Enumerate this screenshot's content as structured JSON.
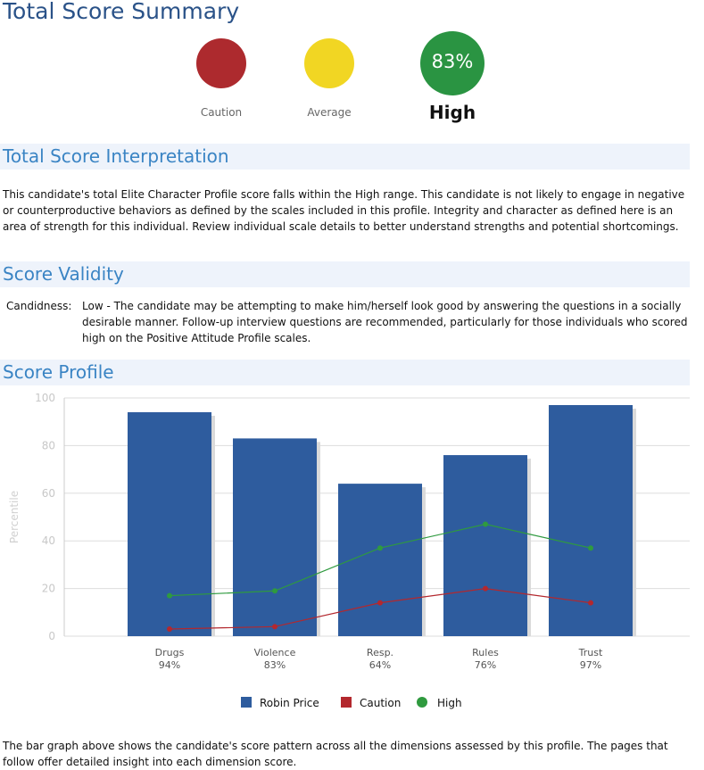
{
  "page_title": "Total Score Summary",
  "summary": {
    "caution_label": "Caution",
    "average_label": "Average",
    "high_label": "High",
    "score": "83%",
    "colors": {
      "caution": "#ad2a2e",
      "average": "#f1d623",
      "high": "#2a9442"
    }
  },
  "interpretation": {
    "heading": "Total Score Interpretation",
    "text": "This candidate's total Elite Character Profile score falls within the High range. This candidate is not likely to engage in negative or counterproductive behaviors as defined by the scales included in this profile. Integrity and character as defined here is an area of strength for this individual. Review individual scale details to better understand strengths and potential shortcomings."
  },
  "validity": {
    "heading": "Score Validity",
    "label": "Candidness:",
    "text": "Low - The candidate may be attempting to make him/herself look good by answering the questions in a socially desirable manner. Follow-up interview questions are recommended, particularly for those individuals who scored high on the Positive Attitude Profile scales."
  },
  "profile": {
    "heading": "Score Profile",
    "footer_text": "The bar graph above shows the candidate's score pattern across all the dimensions assessed by this profile. The pages that follow offer detailed insight into each dimension score."
  },
  "chart_data": {
    "type": "bar",
    "ylabel": "Percentile",
    "ylim": [
      0,
      100
    ],
    "yticks": [
      0,
      20,
      40,
      60,
      80,
      100
    ],
    "grid": true,
    "legend_position": "bottom",
    "categories": [
      "Drugs",
      "Violence",
      "Resp.",
      "Rules",
      "Trust"
    ],
    "category_values": [
      "94%",
      "83%",
      "64%",
      "76%",
      "97%"
    ],
    "series": [
      {
        "name": "Robin Price",
        "type": "bar",
        "color": "#2e5c9e",
        "values": [
          94,
          83,
          64,
          76,
          97
        ]
      },
      {
        "name": "Caution",
        "type": "line",
        "color": "#b3282e",
        "values": [
          3,
          4,
          14,
          20,
          14
        ]
      },
      {
        "name": "High",
        "type": "line",
        "color": "#2f9a3f",
        "values": [
          17,
          19,
          37,
          47,
          37
        ]
      }
    ]
  }
}
